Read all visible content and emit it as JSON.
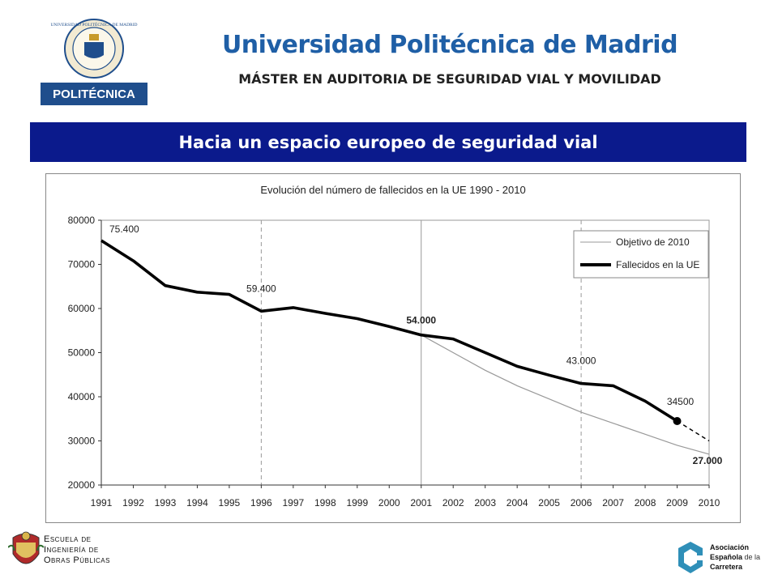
{
  "header": {
    "title": "Universidad Politécnica de Madrid",
    "subtitle": "MÁSTER EN AUDITORIA DE SEGURIDAD VIAL Y MOVILIDAD",
    "logo_text": "POLITÉCNICA",
    "seal_text": "UNIVERSIDAD POLITÉCNICA DE MADRID"
  },
  "banner": {
    "text": "Hacia un espacio europeo de seguridad vial"
  },
  "footer": {
    "left": {
      "line1": "Escuela de",
      "line2": "Ingeniería de",
      "line3": "Obras Públicas"
    },
    "right": {
      "line1": "Asociación",
      "line2": "Española",
      "line2_small": "de la",
      "line3": "Carretera"
    }
  },
  "colors": {
    "title": "#1f5fa6",
    "banner_bg": "#0b1a8c",
    "series_main": "#000000",
    "series_target": "#999999"
  },
  "chart_data": {
    "type": "line",
    "title": "Evolución del número de fallecidos en la UE 1990 - 2010",
    "categories": [
      "1991",
      "1992",
      "1993",
      "1994",
      "1995",
      "1996",
      "1997",
      "1998",
      "1999",
      "2000",
      "2001",
      "2002",
      "2003",
      "2004",
      "2005",
      "2006",
      "2007",
      "2008",
      "2009",
      "2010"
    ],
    "ylim": [
      20000,
      80000
    ],
    "yticks": [
      "20000",
      "30000",
      "40000",
      "50000",
      "60000",
      "70000",
      "80000"
    ],
    "grid": "vertical dashed at 1996, 2006; solid at 2001",
    "legend_position": "top-right",
    "series": [
      {
        "name": "Fallecidos en la UE",
        "values": [
          75400,
          70800,
          65200,
          63700,
          63200,
          59400,
          60200,
          58900,
          57700,
          55900,
          54000,
          53100,
          50000,
          46900,
          44900,
          43000,
          42500,
          39000,
          34500,
          null
        ]
      },
      {
        "name": "Objetivo de 2010",
        "values": [
          null,
          null,
          null,
          null,
          null,
          null,
          null,
          null,
          null,
          null,
          54000,
          50000,
          46000,
          42500,
          39500,
          36500,
          34000,
          31500,
          29000,
          27000
        ]
      }
    ],
    "projection": {
      "from": [
        "2009",
        34500
      ],
      "to": [
        "2010",
        30000
      ]
    },
    "annotations": [
      {
        "text": "75.400",
        "x": "1991",
        "y": 75400,
        "bold": false
      },
      {
        "text": "59.400",
        "x": "1996",
        "y": 59400,
        "bold": false
      },
      {
        "text": "54.000",
        "x": "2001",
        "y": 54000,
        "bold": true
      },
      {
        "text": "43.000",
        "x": "2006",
        "y": 43000,
        "bold": false
      },
      {
        "text": "34500",
        "x": "2009",
        "y": 34500,
        "bold": false
      },
      {
        "text": "27.000",
        "x": "2010",
        "y": 27000,
        "bold": true
      }
    ]
  }
}
